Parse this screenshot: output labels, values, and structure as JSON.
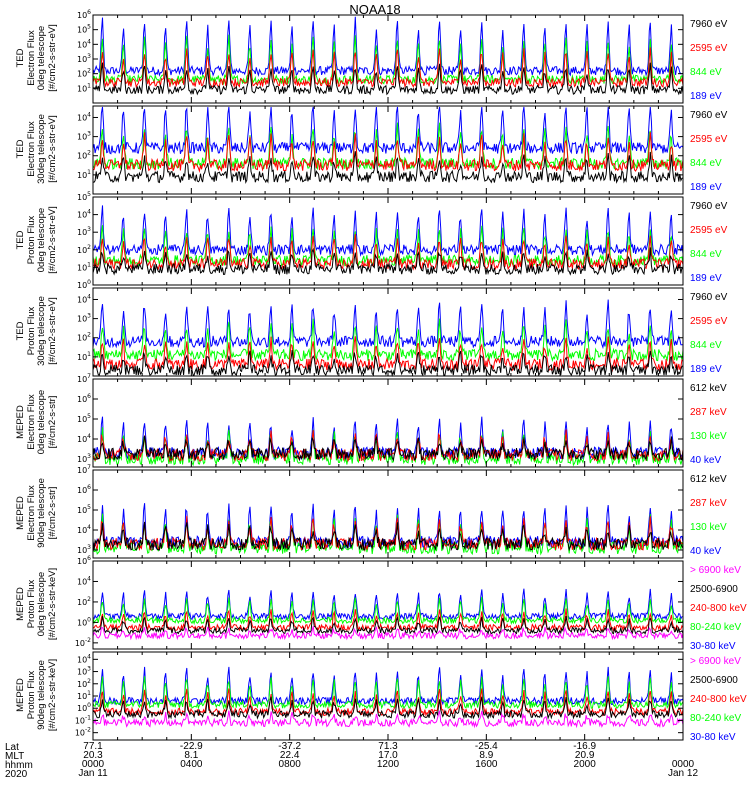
{
  "chart_data": {
    "type": "line",
    "title": "NOAA18",
    "colors": {
      "blue": "#0000ff",
      "red": "#ff0000",
      "green": "#00ff00",
      "black": "#000000",
      "magenta": "#ff00ff"
    },
    "panels": [
      {
        "ylabel": [
          "TED",
          "Electron Flux",
          "0deg telescope",
          "[#/cm2-s-str-eV]"
        ],
        "yticks": [
          "10^1",
          "10^2",
          "10^3",
          "10^4",
          "10^5",
          "10^6"
        ],
        "ylim_exp": [
          0,
          6
        ],
        "legend": [
          {
            "text": "7960 eV",
            "color": "black"
          },
          {
            "text": "2595 eV",
            "color": "red"
          },
          {
            "text": "844 eV",
            "color": "green"
          },
          {
            "text": "189 eV",
            "color": "blue"
          }
        ],
        "series_levels": {
          "blue": 2.2,
          "green": 1.6,
          "red": 1.4,
          "black": 0.9
        },
        "peak": 3.5
      },
      {
        "ylabel": [
          "TED",
          "Electron Flux",
          "30deg telescope",
          "[#/cm2-s-str-eV]"
        ],
        "yticks": [
          "10^1",
          "10^2",
          "10^3",
          "10^4"
        ],
        "ylim_exp": [
          0,
          4.6
        ],
        "legend": [
          {
            "text": "7960 eV",
            "color": "black"
          },
          {
            "text": "2595 eV",
            "color": "red"
          },
          {
            "text": "844 eV",
            "color": "green"
          },
          {
            "text": "189 eV",
            "color": "blue"
          }
        ],
        "series_levels": {
          "blue": 2.4,
          "green": 1.6,
          "red": 1.5,
          "black": 0.9
        },
        "peak": 2.3
      },
      {
        "ylabel": [
          "TED",
          "Proton Flux",
          "0deg telescope",
          "[#/cm2-s-str-eV]"
        ],
        "yticks": [
          "10^0",
          "10^1",
          "10^2",
          "10^3",
          "10^4",
          "10^5"
        ],
        "ylim_exp": [
          0,
          5
        ],
        "legend": [
          {
            "text": "7960 eV",
            "color": "black"
          },
          {
            "text": "2595 eV",
            "color": "red"
          },
          {
            "text": "844 eV",
            "color": "green"
          },
          {
            "text": "189 eV",
            "color": "blue"
          }
        ],
        "series_levels": {
          "blue": 2.0,
          "green": 1.4,
          "red": 1.2,
          "black": 0.9
        },
        "peak": 2.3
      },
      {
        "ylabel": [
          "TED",
          "Proton Flux",
          "30deg telescope",
          "[#/cm2-s-str-eV]"
        ],
        "yticks": [
          "10^1",
          "10^2",
          "10^3",
          "10^4"
        ],
        "ylim_exp": [
          0,
          4.6
        ],
        "legend": [
          {
            "text": "7960 eV",
            "color": "black"
          },
          {
            "text": "2595 eV",
            "color": "red"
          },
          {
            "text": "844 eV",
            "color": "green"
          },
          {
            "text": "189 eV",
            "color": "blue"
          }
        ],
        "series_levels": {
          "blue": 1.8,
          "green": 1.1,
          "red": 0.6,
          "black": 0.3
        },
        "peak": 2.0
      },
      {
        "ylabel": [
          "MEPED",
          "Electron Flux",
          "0deg telescope",
          "[#/cm2-s-str]"
        ],
        "yticks": [
          "10^3",
          "10^4",
          "10^5",
          "10^6",
          "10^7"
        ],
        "ylim_exp": [
          2.6,
          7
        ],
        "legend": [
          {
            "text": "612 keV",
            "color": "black"
          },
          {
            "text": "287 keV",
            "color": "red"
          },
          {
            "text": "130 keV",
            "color": "green"
          },
          {
            "text": "40 keV",
            "color": "blue"
          }
        ],
        "series_levels": {
          "blue": 3.3,
          "green": 3.0,
          "red": 3.2,
          "black": 3.25
        },
        "peak": 1.6
      },
      {
        "ylabel": [
          "MEPED",
          "Electron Flux",
          "90deg telescope",
          "[#/cm2-s-str]"
        ],
        "yticks": [
          "10^3",
          "10^4",
          "10^5",
          "10^6",
          "10^7"
        ],
        "ylim_exp": [
          2.6,
          7
        ],
        "legend": [
          {
            "text": "612 keV",
            "color": "black"
          },
          {
            "text": "287 keV",
            "color": "red"
          },
          {
            "text": "130 keV",
            "color": "green"
          },
          {
            "text": "40 keV",
            "color": "blue"
          }
        ],
        "series_levels": {
          "blue": 3.4,
          "green": 3.1,
          "red": 3.3,
          "black": 3.3
        },
        "peak": 1.8
      },
      {
        "ylabel": [
          "MEPED",
          "Proton Flux",
          "0deg telescope",
          "[#/cm2-s-str-keV]"
        ],
        "yticks": [
          "10^-2",
          "10^0",
          "10^2",
          "10^4",
          "10^6"
        ],
        "ylim_exp": [
          -2.6,
          6
        ],
        "legend": [
          {
            "text": "> 6900 keV",
            "color": "magenta"
          },
          {
            "text": "2500-6900",
            "color": "black"
          },
          {
            "text": "240-800 keV",
            "color": "red"
          },
          {
            "text": "80-240 keV",
            "color": "green"
          },
          {
            "text": "30-80 keV",
            "color": "blue"
          }
        ],
        "series_levels": {
          "blue": 0.6,
          "green": 0.2,
          "red": -0.5,
          "black": -0.8,
          "magenta": -1.3
        },
        "peak": 2.5
      },
      {
        "ylabel": [
          "MEPED",
          "Proton Flux",
          "90deg telescope",
          "[#/cm2-s-str-keV]"
        ],
        "yticks": [
          "10^-2",
          "10^-1",
          "10^0",
          "10^1",
          "10^2",
          "10^3",
          "10^4"
        ],
        "ylim_exp": [
          -2.6,
          4.6
        ],
        "legend": [
          {
            "text": "> 6900 keV",
            "color": "magenta"
          },
          {
            "text": "2500-6900",
            "color": "black"
          },
          {
            "text": "240-800 keV",
            "color": "red"
          },
          {
            "text": "80-240 keV",
            "color": "green"
          },
          {
            "text": "30-80 keV",
            "color": "blue"
          }
        ],
        "series_levels": {
          "blue": 0.6,
          "green": 0.3,
          "red": -0.3,
          "black": -0.5,
          "magenta": -1.2
        },
        "peak": 2.6
      }
    ],
    "x_axis": {
      "row_labels": [
        "Lat",
        "MLT",
        "hhmm",
        "2020"
      ],
      "columns": [
        {
          "lat": "77.1",
          "mlt": "20.3",
          "hhmm": "0000",
          "date": "Jan 11"
        },
        {
          "lat": "-22.9",
          "mlt": "8.1",
          "hhmm": "0400",
          "date": ""
        },
        {
          "lat": "-37.2",
          "mlt": "22.4",
          "hhmm": "0800",
          "date": ""
        },
        {
          "lat": "71.3",
          "mlt": "17.0",
          "hhmm": "1200",
          "date": ""
        },
        {
          "lat": "-25.4",
          "mlt": "8.9",
          "hhmm": "1600",
          "date": ""
        },
        {
          "lat": "-16.9",
          "mlt": "20.9",
          "hhmm": "2000",
          "date": ""
        },
        {
          "lat": "",
          "mlt": "",
          "hhmm": "0000",
          "date": "Jan 12"
        }
      ]
    },
    "orbits_per_day": 14
  }
}
